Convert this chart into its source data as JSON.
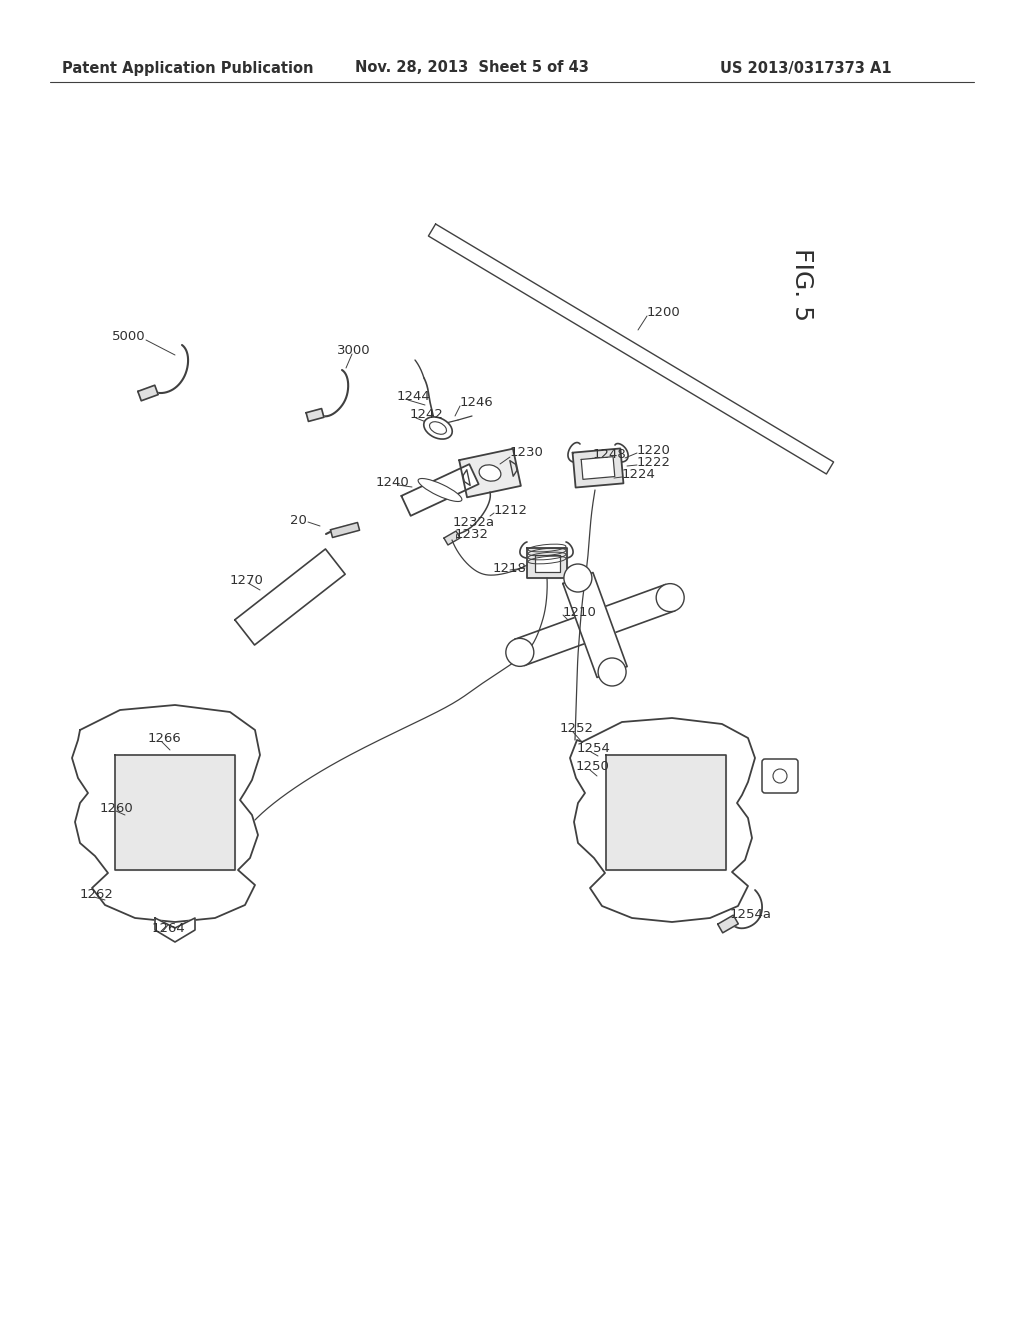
{
  "header_left": "Patent Application Publication",
  "header_mid": "Nov. 28, 2013  Sheet 5 of 43",
  "header_right": "US 2013/0317373 A1",
  "fig_label": "FIG. 5",
  "background_color": "#ffffff",
  "line_color": "#404040",
  "text_color": "#303030",
  "header_font_size": 10.5,
  "label_font_size": 9.5
}
